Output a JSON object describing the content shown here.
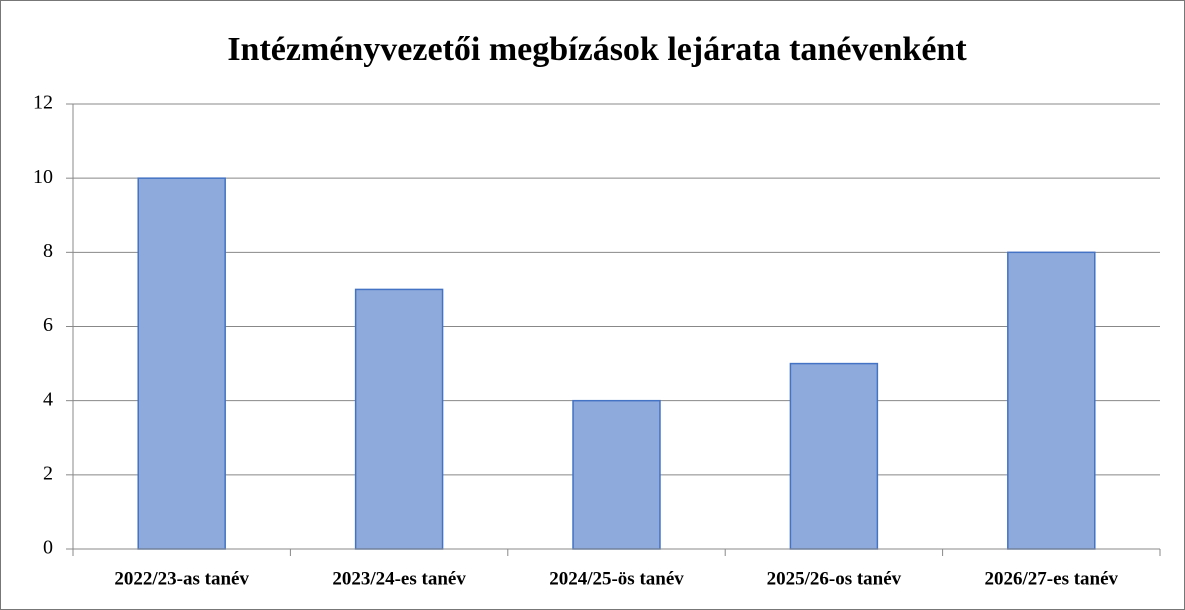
{
  "chart_data": {
    "type": "bar",
    "title": "Intézményvezetői megbízások lejárata tanévenként",
    "categories": [
      "2022/23-as tanév",
      "2023/24-es tanév",
      "2024/25-ös tanév",
      "2025/26-os tanév",
      "2026/27-es tanév"
    ],
    "values": [
      10,
      7,
      4,
      5,
      8
    ],
    "color": "#8eaadc",
    "ylim": [
      0,
      12
    ],
    "yticks": [
      0,
      2,
      4,
      6,
      8,
      10,
      12
    ],
    "grid": true
  }
}
